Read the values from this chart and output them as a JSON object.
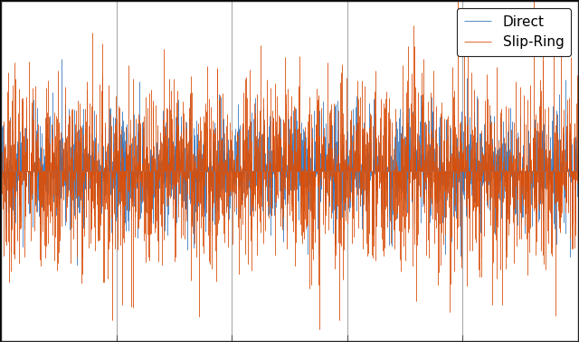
{
  "title": "",
  "xlabel": "",
  "ylabel": "",
  "color_direct": "#3777be",
  "color_slipring": "#d94f0a",
  "legend_labels": [
    "Direct",
    "Slip-Ring"
  ],
  "n_points": 2000,
  "seed_direct": 42,
  "seed_slipring": 7,
  "amplitude_direct": 0.6,
  "amplitude_slipring": 1.0,
  "figsize": [
    6.4,
    3.78
  ],
  "dpi": 100,
  "background_color": "#000000",
  "axes_background": "#ffffff",
  "n_xticks": 5,
  "grid_color": "#aaaaaa",
  "linewidth": 0.6,
  "ylim": [
    -3.5,
    3.5
  ]
}
